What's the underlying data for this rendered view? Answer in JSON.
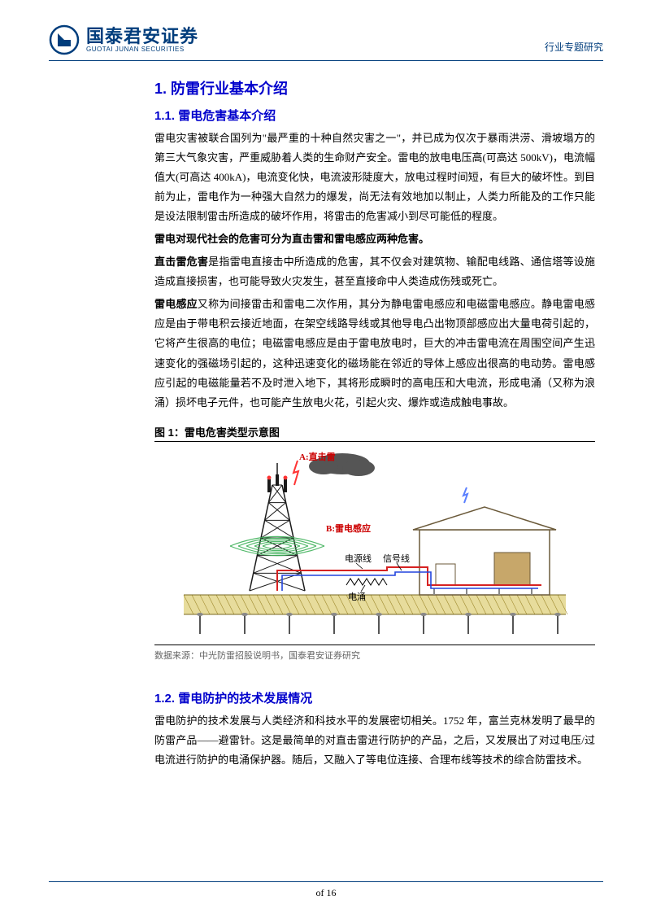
{
  "header": {
    "logo_cn": "国泰君安证券",
    "logo_en": "GUOTAI JUNAN SECURITIES",
    "right_label": "行业专题研究",
    "rule_color": "#003d7c"
  },
  "section1": {
    "number": "1.",
    "title": "防雷行业基本介绍"
  },
  "section11": {
    "number": "1.1.",
    "title": "雷电危害基本介绍",
    "p1": "雷电灾害被联合国列为\"最严重的十种自然灾害之一\"，并已成为仅次于暴雨洪涝、滑坡塌方的第三大气象灾害，严重威胁着人类的生命财产安全。雷电的放电电压高(可高达 500kV)，电流幅值大(可高达 400kA)，电流变化快，电流波形陡度大，放电过程时间短，有巨大的破坏性。到目前为止，雷电作为一种强大自然力的爆发，尚无法有效地加以制止，人类力所能及的工作只能是设法限制雷击所造成的破坏作用，将雷击的危害减小到尽可能低的程度。",
    "p2_bold": "雷电对现代社会的危害可分为直击雷和雷电感应两种危害。",
    "p3_lead_bold": "直击雷危害",
    "p3_rest": "是指雷电直接击中所造成的危害，其不仅会对建筑物、输配电线路、通信塔等设施造成直接损害，也可能导致火灾发生，甚至直接命中人类造成伤残或死亡。",
    "p4_lead_bold": "雷电感应",
    "p4_rest": "又称为间接雷击和雷电二次作用，其分为静电雷电感应和电磁雷电感应。静电雷电感应是由于带电积云接近地面，在架空线路导线或其他导电凸出物顶部感应出大量电荷引起的，它将产生很高的电位；电磁雷电感应是由于雷电放电时，巨大的冲击雷电流在周围空间产生迅速变化的强磁场引起的，这种迅速变化的磁场能在邻近的导体上感应出很高的电动势。雷电感应引起的电磁能量若不及时泄入地下，其将形成瞬时的高电压和大电流，形成电涌（又称为浪涌）损坏电子元件，也可能产生放电火花，引起火灾、爆炸或造成触电事故。"
  },
  "figure1": {
    "title": "图 1：雷电危害类型示意图",
    "labels": {
      "a": "A:直击雷",
      "b": "B:雷电感应",
      "power_line": "电源线",
      "signal_line": "信号线",
      "surge": "电涌"
    },
    "colors": {
      "label_red": "#cc0000",
      "label_blue": "#0033cc",
      "cloud": "#555555",
      "tower": "#1a1a1a",
      "ground_yellow": "#d4c04a",
      "building_fill": "#c7a76a",
      "building_stroke": "#6b5a3a",
      "green_wave": "#3db058",
      "red_line": "#d62222",
      "blue_line": "#2244dd",
      "bolt_blue": "#5a7fff",
      "bolt_red": "#ff3333"
    },
    "source": "数据来源：中光防雷招股说明书，国泰君安证券研究"
  },
  "section12": {
    "number": "1.2.",
    "title": "雷电防护的技术发展情况",
    "p1": "雷电防护的技术发展与人类经济和科技水平的发展密切相关。1752 年，富兰克林发明了最早的防雷产品——避雷针。这是最简单的对直击雷进行防护的产品，之后，又发展出了对过电压/过电流进行防护的电涌保护器。随后，又融入了等电位连接、合理布线等技术的综合防雷技术。"
  },
  "footer": {
    "text": "of 16"
  }
}
